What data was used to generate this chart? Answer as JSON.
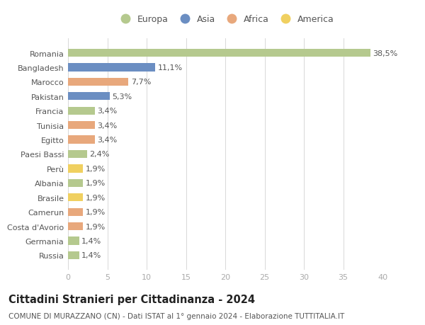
{
  "countries": [
    "Romania",
    "Bangladesh",
    "Marocco",
    "Pakistan",
    "Francia",
    "Tunisia",
    "Egitto",
    "Paesi Bassi",
    "Perù",
    "Albania",
    "Brasile",
    "Camerun",
    "Costa d'Avorio",
    "Germania",
    "Russia"
  ],
  "values": [
    38.5,
    11.1,
    7.7,
    5.3,
    3.4,
    3.4,
    3.4,
    2.4,
    1.9,
    1.9,
    1.9,
    1.9,
    1.9,
    1.4,
    1.4
  ],
  "labels": [
    "38,5%",
    "11,1%",
    "7,7%",
    "5,3%",
    "3,4%",
    "3,4%",
    "3,4%",
    "2,4%",
    "1,9%",
    "1,9%",
    "1,9%",
    "1,9%",
    "1,9%",
    "1,4%",
    "1,4%"
  ],
  "colors": [
    "#b5c98e",
    "#6b8ec2",
    "#e8a87c",
    "#6b8ec2",
    "#b5c98e",
    "#e8a87c",
    "#e8a87c",
    "#b5c98e",
    "#f0d060",
    "#b5c98e",
    "#f0d060",
    "#e8a87c",
    "#e8a87c",
    "#b5c98e",
    "#b5c98e"
  ],
  "legend_labels": [
    "Europa",
    "Asia",
    "Africa",
    "America"
  ],
  "legend_colors": [
    "#b5c98e",
    "#6b8ec2",
    "#e8a87c",
    "#f0d060"
  ],
  "title": "Cittadini Stranieri per Cittadinanza - 2024",
  "subtitle": "COMUNE DI MURAZZANO (CN) - Dati ISTAT al 1° gennaio 2024 - Elaborazione TUTTITALIA.IT",
  "xlim": [
    0,
    40
  ],
  "xticks": [
    0,
    5,
    10,
    15,
    20,
    25,
    30,
    35,
    40
  ],
  "background_color": "#ffffff",
  "grid_color": "#d8d8d8",
  "bar_height": 0.55,
  "label_fontsize": 8,
  "tick_fontsize": 8,
  "ytick_fontsize": 8,
  "title_fontsize": 10.5,
  "subtitle_fontsize": 7.5
}
